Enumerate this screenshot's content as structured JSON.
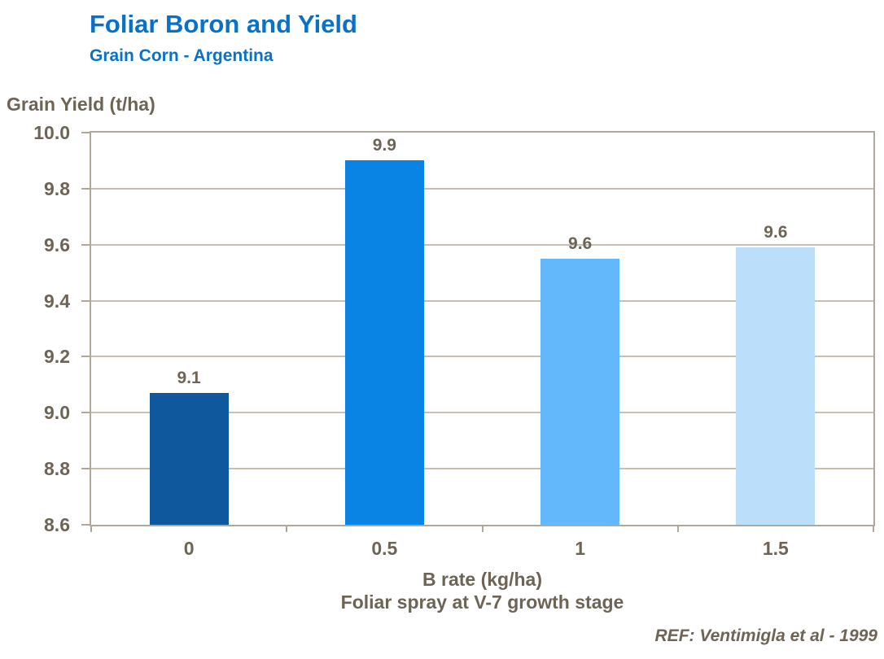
{
  "header": {
    "title": "Foliar Boron and Yield",
    "subtitle": "Grain Corn - Argentina"
  },
  "footer": {
    "reference": "REF: Ventimigla et al - 1999"
  },
  "chart_data": {
    "type": "bar",
    "title": "Foliar Boron and Yield",
    "subtitle": "Grain Corn - Argentina",
    "ylabel": "Grain Yield (t/ha)",
    "xlabel": "B rate (kg/ha)",
    "xlabel_line2": "Foliar spray at V-7 growth stage",
    "categories": [
      "0",
      "0.5",
      "1",
      "1.5"
    ],
    "values": [
      9.07,
      9.9,
      9.55,
      9.59
    ],
    "data_labels": [
      "9.1",
      "9.9",
      "9.6",
      "9.6"
    ],
    "bar_colors": [
      "#0f589d",
      "#0a84e4",
      "#62b8fa",
      "#bbdefb"
    ],
    "ylim": [
      8.6,
      10.0
    ],
    "ytick_step": 0.2,
    "yticks": [
      "10.0",
      "9.8",
      "9.6",
      "9.4",
      "9.2",
      "9.0",
      "8.8",
      "8.6"
    ],
    "grid": "horizontal",
    "legend": "none"
  },
  "colors": {
    "title_blue": "#0a72c6",
    "axis_text": "#6e6456",
    "gridline": "#c8bfb1",
    "axis_line": "#b2a89a",
    "background": "#ffffff"
  }
}
